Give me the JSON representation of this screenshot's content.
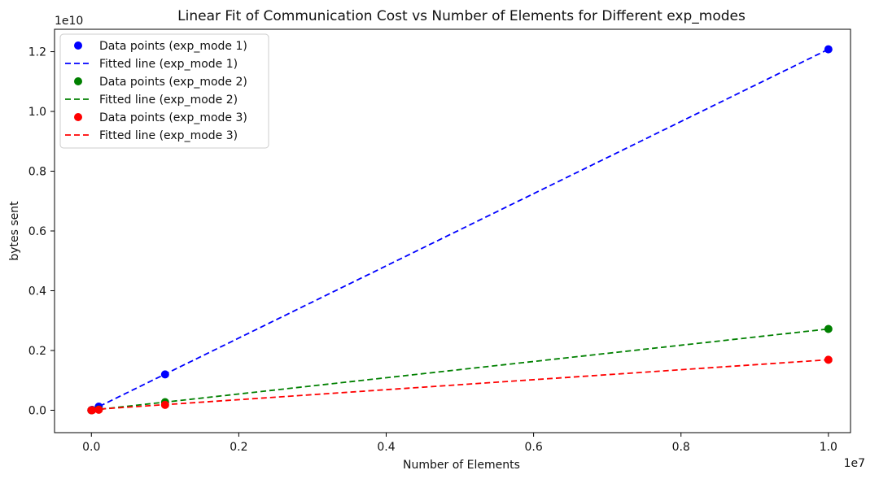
{
  "chart_data": {
    "type": "line",
    "title": "Linear Fit of Communication Cost vs Number of Elements for Different exp_modes",
    "xlabel": "Number of Elements",
    "ylabel": "bytes sent",
    "x_scale_label": "1e7",
    "y_scale_label": "1e10",
    "xlim": [
      -0.05,
      1.03
    ],
    "ylim": [
      -0.075,
      1.275
    ],
    "x_ticks": [
      0.0,
      0.2,
      0.4,
      0.6,
      0.8,
      1.0
    ],
    "x_tick_labels": [
      "0.0",
      "0.2",
      "0.4",
      "0.6",
      "0.8",
      "1.0"
    ],
    "y_ticks": [
      0.0,
      0.2,
      0.4,
      0.6,
      0.8,
      1.0,
      1.2
    ],
    "y_tick_labels": [
      "0.0",
      "0.2",
      "0.4",
      "0.6",
      "0.8",
      "1.0",
      "1.2"
    ],
    "legend_position": "top-left",
    "series": [
      {
        "name": "exp_mode 1",
        "color": "#0000ff",
        "points_label": "Data points (exp_mode 1)",
        "line_label": "Fitted line (exp_mode 1)",
        "x": [
          0.0,
          0.001,
          0.01,
          0.1,
          1.0
        ],
        "y": [
          0.0001,
          0.0012,
          0.012,
          0.12,
          1.208
        ],
        "fit": {
          "x": [
            0.0,
            1.0
          ],
          "y": [
            0.0,
            1.208
          ]
        }
      },
      {
        "name": "exp_mode 2",
        "color": "#008000",
        "points_label": "Data points (exp_mode 2)",
        "line_label": "Fitted line (exp_mode 2)",
        "x": [
          0.0,
          0.001,
          0.01,
          0.1,
          1.0
        ],
        "y": [
          0.0,
          0.0003,
          0.0027,
          0.027,
          0.272
        ],
        "fit": {
          "x": [
            0.0,
            1.0
          ],
          "y": [
            0.0,
            0.272
          ]
        }
      },
      {
        "name": "exp_mode 3",
        "color": "#ff0000",
        "points_label": "Data points (exp_mode 3)",
        "line_label": "Fitted line (exp_mode 3)",
        "x": [
          0.0,
          0.001,
          0.01,
          0.1,
          1.0
        ],
        "y": [
          0.0,
          0.0002,
          0.0017,
          0.018,
          0.169
        ],
        "fit": {
          "x": [
            0.0,
            1.0
          ],
          "y": [
            0.002,
            0.169
          ]
        }
      }
    ]
  }
}
